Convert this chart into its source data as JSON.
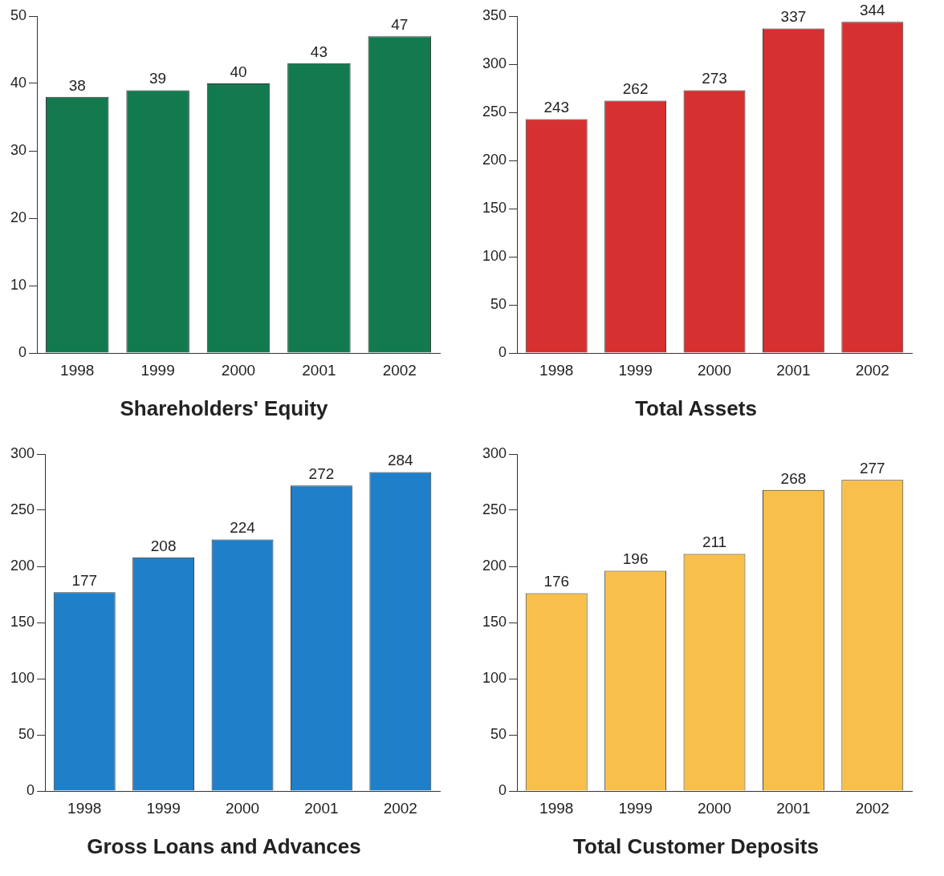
{
  "chart_data": [
    {
      "type": "bar",
      "title": "Shareholders' Equity",
      "categories": [
        "1998",
        "1999",
        "2000",
        "2001",
        "2002"
      ],
      "values": [
        38,
        39,
        40,
        43,
        47
      ],
      "color": "#137a4f",
      "ylim": [
        0,
        50
      ],
      "yticks": [
        0,
        10,
        20,
        30,
        40,
        50
      ],
      "grid": false,
      "data_labels": true
    },
    {
      "type": "bar",
      "title": "Total Assets",
      "categories": [
        "1998",
        "1999",
        "2000",
        "2001",
        "2002"
      ],
      "values": [
        243,
        262,
        273,
        337,
        344
      ],
      "color": "#d63030",
      "ylim": [
        0,
        350
      ],
      "yticks": [
        0,
        50,
        100,
        150,
        200,
        250,
        300,
        350
      ],
      "grid": false,
      "data_labels": true
    },
    {
      "type": "bar",
      "title": "Gross Loans and Advances",
      "categories": [
        "1998",
        "1999",
        "2000",
        "2001",
        "2002"
      ],
      "values": [
        177,
        208,
        224,
        272,
        284
      ],
      "color": "#1f7fc8",
      "ylim": [
        0,
        300
      ],
      "yticks": [
        0,
        50,
        100,
        150,
        200,
        250,
        300
      ],
      "grid": false,
      "data_labels": true
    },
    {
      "type": "bar",
      "title": "Total Customer Deposits",
      "categories": [
        "1998",
        "1999",
        "2000",
        "2001",
        "2002"
      ],
      "values": [
        176,
        196,
        211,
        268,
        277
      ],
      "color": "#f8c04a",
      "ylim": [
        0,
        300
      ],
      "yticks": [
        0,
        50,
        100,
        150,
        200,
        250,
        300
      ],
      "grid": false,
      "data_labels": true
    }
  ]
}
